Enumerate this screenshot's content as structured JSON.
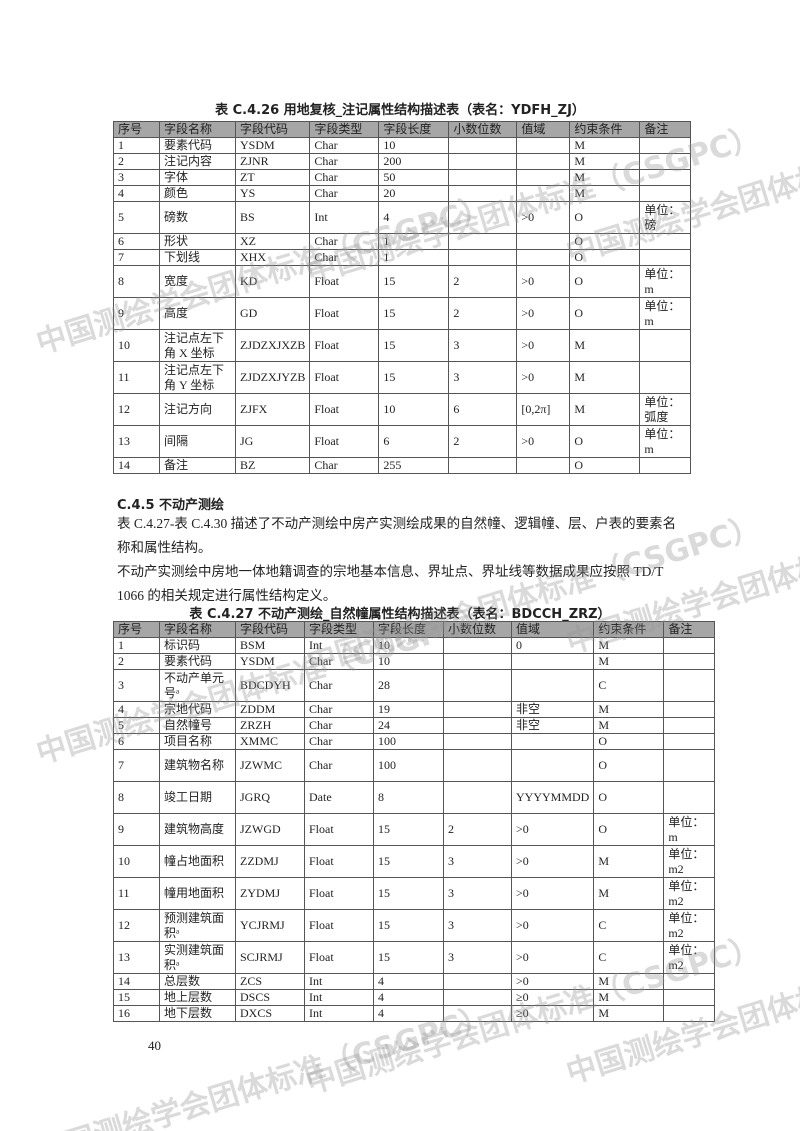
{
  "headers": [
    "序号",
    "字段名称",
    "字段代码",
    "字段类型",
    "字段长度",
    "小数位数",
    "值域",
    "约束条件",
    "备注"
  ],
  "table1": {
    "title": "表 C.4.26 用地复核_注记属性结构描述表（表名：YDFH_ZJ）",
    "rows": [
      [
        "1",
        "要素代码",
        "YSDM",
        "Char",
        "10",
        "",
        "",
        "M",
        ""
      ],
      [
        "2",
        "注记内容",
        "ZJNR",
        "Char",
        "200",
        "",
        "",
        "M",
        ""
      ],
      [
        "3",
        "字体",
        "ZT",
        "Char",
        "50",
        "",
        "",
        "M",
        ""
      ],
      [
        "4",
        "颜色",
        "YS",
        "Char",
        "20",
        "",
        "",
        "M",
        ""
      ],
      [
        "5",
        "磅数",
        "BS",
        "Int",
        "4",
        "",
        ">0",
        "O",
        "单位：磅"
      ],
      [
        "6",
        "形状",
        "XZ",
        "Char",
        "1",
        "",
        "",
        "O",
        ""
      ],
      [
        "7",
        "下划线",
        "XHX",
        "Char",
        "1",
        "",
        "",
        "O",
        ""
      ],
      [
        "8",
        "宽度",
        "KD",
        "Float",
        "15",
        "2",
        ">0",
        "O",
        "单位：m"
      ],
      [
        "9",
        "高度",
        "GD",
        "Float",
        "15",
        "2",
        ">0",
        "O",
        "单位：m"
      ],
      [
        "10",
        "注记点左下角 X 坐标",
        "ZJDZXJXZB",
        "Float",
        "15",
        "3",
        ">0",
        "M",
        ""
      ],
      [
        "11",
        "注记点左下角 Y 坐标",
        "ZJDZXJYZB",
        "Float",
        "15",
        "3",
        ">0",
        "M",
        ""
      ],
      [
        "12",
        "注记方向",
        "ZJFX",
        "Float",
        "10",
        "6",
        "[0,2π]",
        "M",
        "单位：弧度"
      ],
      [
        "13",
        "间隔",
        "JG",
        "Float",
        "6",
        "2",
        ">0",
        "O",
        "单位：m"
      ],
      [
        "14",
        "备注",
        "BZ",
        "Char",
        "255",
        "",
        "",
        "O",
        ""
      ]
    ],
    "double": [
      4,
      7,
      8,
      9,
      10,
      11,
      12
    ]
  },
  "section": {
    "heading": "C.4.5 不动产测绘",
    "para1": "表 C.4.27-表 C.4.30 描述了不动产测绘中房产实测绘成果的自然幢、逻辑幢、层、户表的要素名称和属性结构。",
    "para2": "不动产实测绘中房地一体地籍调查的宗地基本信息、界址点、界址线等数据成果应按照 TD/T 1066 的相关规定进行属性结构定义。"
  },
  "table2": {
    "title": "表 C.4.27 不动产测绘_自然幢属性结构描述表（表名：BDCCH_ZRZ）",
    "rows": [
      [
        "1",
        "标识码",
        "BSM",
        "Int",
        "10",
        "",
        "0",
        "M",
        ""
      ],
      [
        "2",
        "要素代码",
        "YSDM",
        "Char",
        "10",
        "",
        "",
        "M",
        ""
      ],
      [
        "3",
        "不动产单元号ᵃ",
        "BDCDYH",
        "Char",
        "28",
        "",
        "",
        "C",
        ""
      ],
      [
        "4",
        "宗地代码",
        "ZDDM",
        "Char",
        "19",
        "",
        "非空",
        "M",
        ""
      ],
      [
        "5",
        "自然幢号",
        "ZRZH",
        "Char",
        "24",
        "",
        "非空",
        "M",
        ""
      ],
      [
        "6",
        "项目名称",
        "XMMC",
        "Char",
        "100",
        "",
        "",
        "O",
        ""
      ],
      [
        "7",
        "建筑物名称",
        "JZWMC",
        "Char",
        "100",
        "",
        "",
        "O",
        ""
      ],
      [
        "8",
        "竣工日期",
        "JGRQ",
        "Date",
        "8",
        "",
        "YYYYMMDD",
        "O",
        ""
      ],
      [
        "9",
        "建筑物高度",
        "JZWGD",
        "Float",
        "15",
        "2",
        ">0",
        "O",
        "单位：m"
      ],
      [
        "10",
        "幢占地面积",
        "ZZDMJ",
        "Float",
        "15",
        "3",
        ">0",
        "M",
        "单位：m2"
      ],
      [
        "11",
        "幢用地面积",
        "ZYDMJ",
        "Float",
        "15",
        "3",
        ">0",
        "M",
        "单位：m2"
      ],
      [
        "12",
        "预测建筑面积ᵃ",
        "YCJRMJ",
        "Float",
        "15",
        "3",
        ">0",
        "C",
        "单位：m2"
      ],
      [
        "13",
        "实测建筑面积ᵃ",
        "SCJRMJ",
        "Float",
        "15",
        "3",
        ">0",
        "C",
        "单位：m2"
      ],
      [
        "14",
        "总层数",
        "ZCS",
        "Int",
        "4",
        "",
        ">0",
        "M",
        ""
      ],
      [
        "15",
        "地上层数",
        "DSCS",
        "Int",
        "4",
        "",
        "≥0",
        "M",
        ""
      ],
      [
        "16",
        "地下层数",
        "DXCS",
        "Int",
        "4",
        "",
        "≥0",
        "M",
        ""
      ]
    ],
    "double": [
      2,
      6,
      7,
      8,
      9,
      10,
      11,
      12
    ]
  },
  "page_number": "40",
  "watermark": "中国测绘学会团体标准（CSGPC）"
}
